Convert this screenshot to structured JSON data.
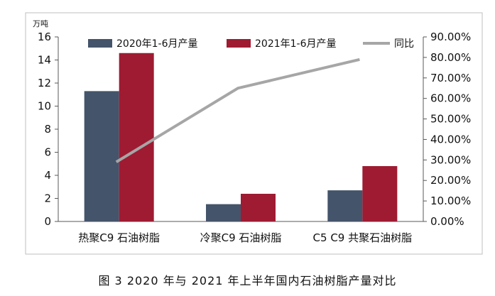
{
  "caption": "图 3  2020 年与 2021 年上半年国内石油树脂产量对比",
  "colors": {
    "series2020": "#44546a",
    "series2021": "#9e1b32",
    "ratio": "#a6a6a6",
    "frame": "#bfbfbf"
  },
  "chart_data": {
    "type": "bar",
    "left_axis_unit": "万吨",
    "categories": [
      "热聚C9 石油树脂",
      "冷聚C9 石油树脂",
      "C5 C9 共聚石油树脂"
    ],
    "series": [
      {
        "name": "2020年1-6月产量",
        "type": "bar",
        "axis": "left",
        "values": [
          11.3,
          1.5,
          2.7
        ]
      },
      {
        "name": "2021年1-6月产量",
        "type": "bar",
        "axis": "left",
        "values": [
          14.6,
          2.4,
          4.8
        ]
      },
      {
        "name": "同比",
        "type": "line",
        "axis": "right",
        "values": [
          0.29,
          0.65,
          0.79
        ]
      }
    ],
    "left_ylim": [
      0,
      16
    ],
    "left_ticks": [
      "0",
      "2",
      "4",
      "6",
      "8",
      "10",
      "12",
      "14",
      "16"
    ],
    "right_ylim": [
      0,
      0.9
    ],
    "right_ticks": [
      "0.00%",
      "10.00%",
      "20.00%",
      "30.00%",
      "40.00%",
      "50.00%",
      "60.00%",
      "70.00%",
      "80.00%",
      "90.00%"
    ],
    "legend_position": "top",
    "grid": false
  }
}
